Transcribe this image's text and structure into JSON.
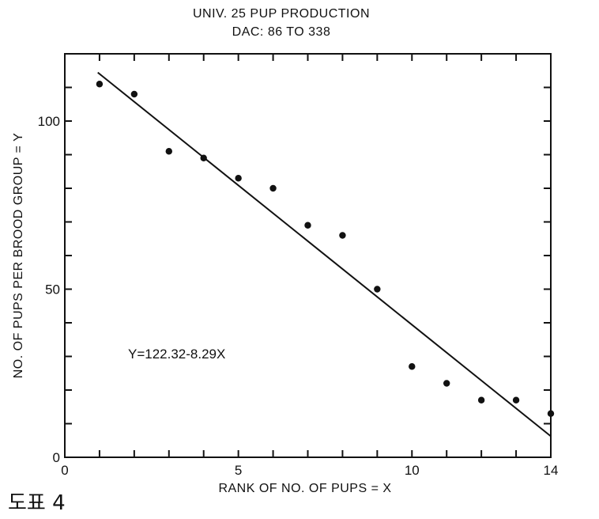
{
  "chart_data": {
    "type": "scatter",
    "title": "UNIV. 25 PUP PRODUCTION",
    "subtitle": "DAC: 86 TO 338",
    "xlabel": "RANK OF NO. OF PUPS = X",
    "ylabel": "NO. OF PUPS PER BROOD GROUP = Y",
    "xlim": [
      0,
      14
    ],
    "ylim": [
      0,
      120
    ],
    "x_ticks": [
      0,
      5,
      10,
      14
    ],
    "y_ticks": [
      0,
      50,
      100
    ],
    "grid": false,
    "series": [
      {
        "x": [
          1,
          2,
          3,
          4,
          5,
          6,
          7,
          8,
          9,
          10,
          11,
          12,
          13,
          14
        ],
        "y": [
          111,
          108,
          91,
          89,
          83,
          80,
          69,
          66,
          50,
          27,
          22,
          17,
          17,
          13
        ]
      }
    ],
    "fit_line": {
      "intercept": 122.32,
      "slope": -8.29,
      "x_range": [
        1,
        14
      ]
    },
    "annotation": "Y=122.32-8.29X"
  },
  "caption": "도표 4"
}
